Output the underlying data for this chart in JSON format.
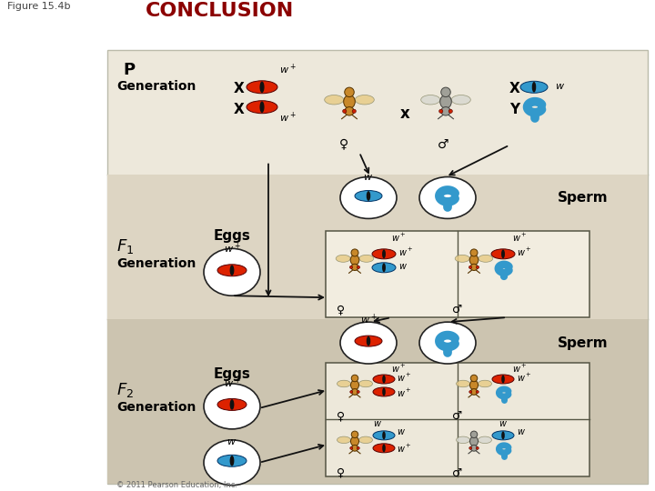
{
  "title": "CONCLUSION",
  "figure_label": "Figure 15.4b",
  "title_color": "#8B0000",
  "bg_white": "#ffffff",
  "bg_light": "#ede8db",
  "bg_mid": "#ddd5c3",
  "bg_dark": "#ccc4b0",
  "red_color": "#dd2200",
  "blue_color": "#3399cc",
  "blue_dark": "#1166aa",
  "text_black": "#000000",
  "text_dark": "#111111",
  "copyright": "© 2011 Pearson Education, Inc."
}
